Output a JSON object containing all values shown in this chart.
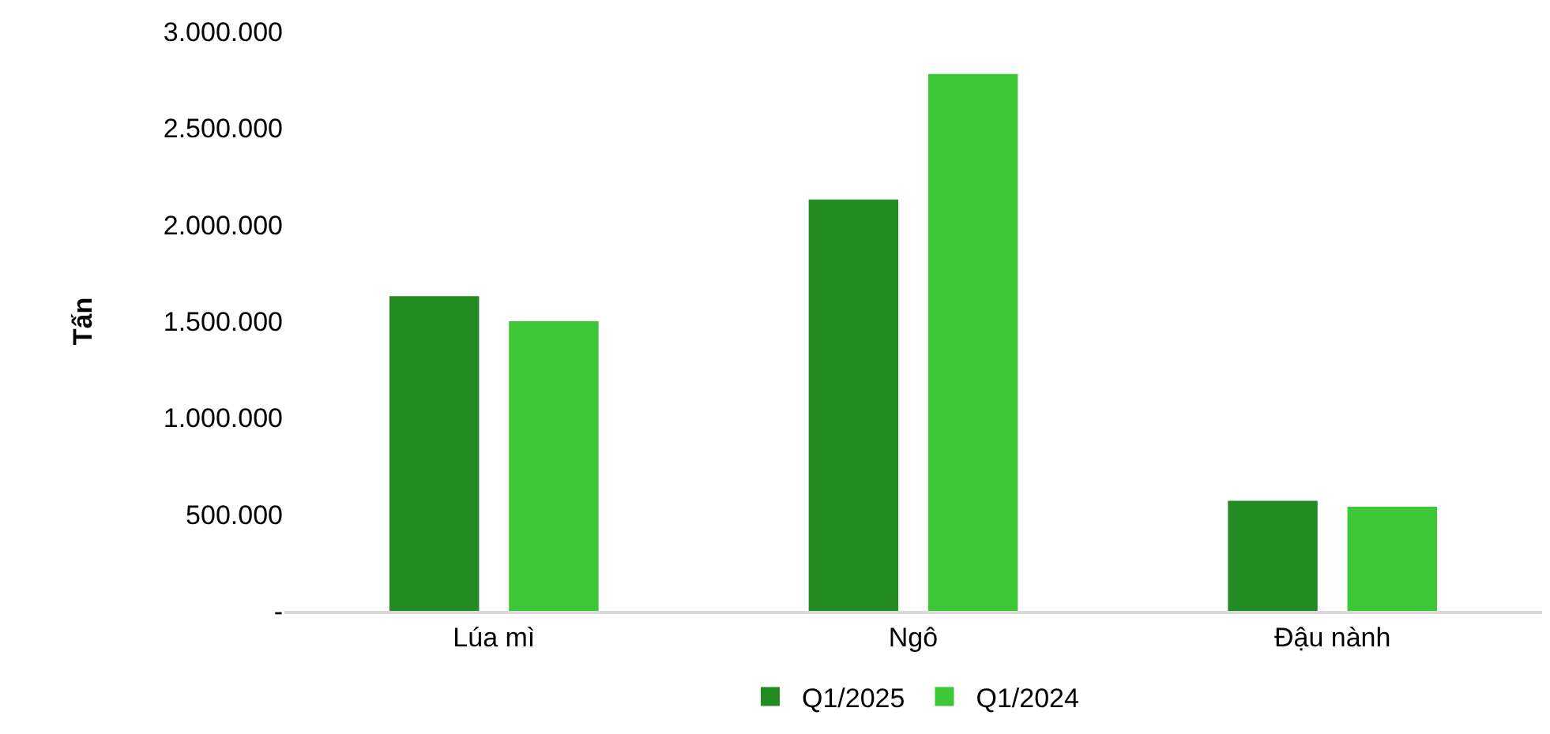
{
  "chart_data": {
    "type": "bar",
    "ylabel": "Tấn",
    "categories": [
      "Lúa mì",
      "Ngô",
      "Đậu nành"
    ],
    "series": [
      {
        "name": "Q1/2025",
        "color": "#228b22",
        "values": [
          1630000,
          2130000,
          570000
        ]
      },
      {
        "name": "Q1/2024",
        "color": "#3dc635",
        "values": [
          1500000,
          2780000,
          540000
        ]
      }
    ],
    "ylim": [
      0,
      3000000
    ],
    "yticks": [
      {
        "value": 0,
        "label": "-"
      },
      {
        "value": 500000,
        "label": "500.000"
      },
      {
        "value": 1000000,
        "label": "1.000.000"
      },
      {
        "value": 1500000,
        "label": "1.500.000"
      },
      {
        "value": 2000000,
        "label": "2.000.000"
      },
      {
        "value": 2500000,
        "label": "2.500.000"
      },
      {
        "value": 3000000,
        "label": "3.000.000"
      }
    ],
    "grid": false,
    "legend": "bottom"
  }
}
